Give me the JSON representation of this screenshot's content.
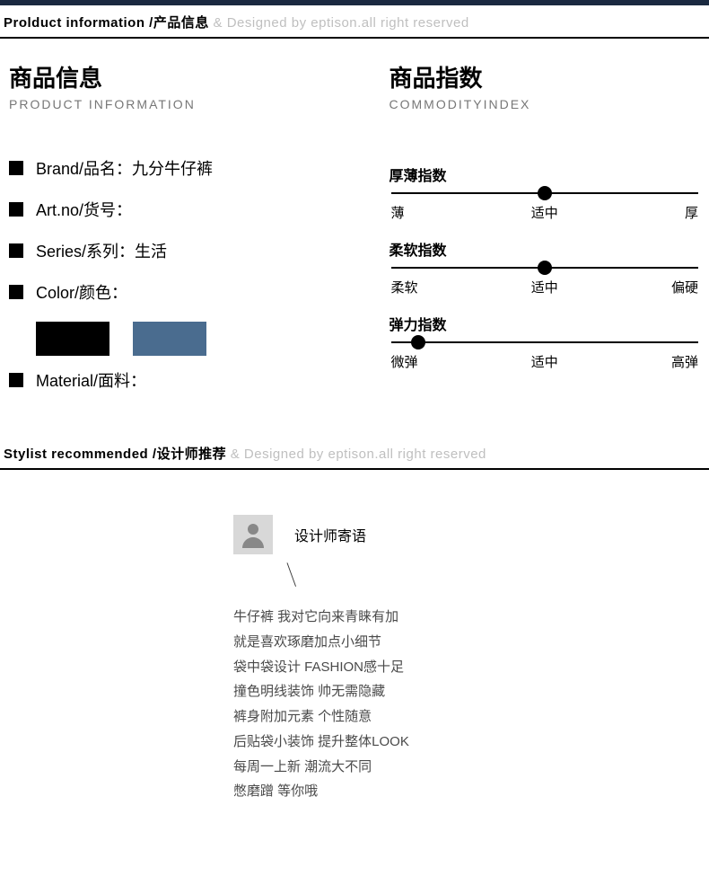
{
  "colors": {
    "swatch_black": "#000000",
    "swatch_blue": "#4a6c8f",
    "text_sub": "#bfbfbf"
  },
  "bar1": {
    "en": "Prolduct information /",
    "zh": "产品信息",
    "sub": " & Designed by eptison.all right reserved"
  },
  "left": {
    "title_zh": "商品信息",
    "title_en": "PRODUCT INFORMATION",
    "attrs": {
      "brand": "Brand/品名：九分牛仔裤",
      "artno": "Art.no/货号：",
      "series": "Series/系列：生活",
      "color": "Color/颜色：",
      "material": "Material/面料："
    }
  },
  "right": {
    "title_zh": "商品指数",
    "title_en": "COMMODITYINDEX",
    "gauges": [
      {
        "title": "厚薄指数",
        "dot_pct": 50,
        "labels": [
          "薄",
          "适中",
          "厚"
        ]
      },
      {
        "title": "柔软指数",
        "dot_pct": 50,
        "labels": [
          "柔软",
          "适中",
          "偏硬"
        ]
      },
      {
        "title": "弹力指数",
        "dot_pct": 9,
        "labels": [
          "微弹",
          "适中",
          "高弹"
        ]
      }
    ]
  },
  "bar2": {
    "en": "Stylist recommended /",
    "zh": "设计师推荐",
    "sub": " & Designed by eptison.all right reserved"
  },
  "stylist": {
    "title": "设计师寄语",
    "lines": [
      "牛仔裤 我对它向来青睐有加",
      "就是喜欢琢磨加点小细节",
      "袋中袋设计 FASHION感十足",
      "撞色明线装饰 帅无需隐藏",
      "裤身附加元素 个性随意",
      "后贴袋小装饰 提升整体LOOK",
      "每周一上新 潮流大不同",
      "憋磨蹭 等你哦"
    ]
  }
}
